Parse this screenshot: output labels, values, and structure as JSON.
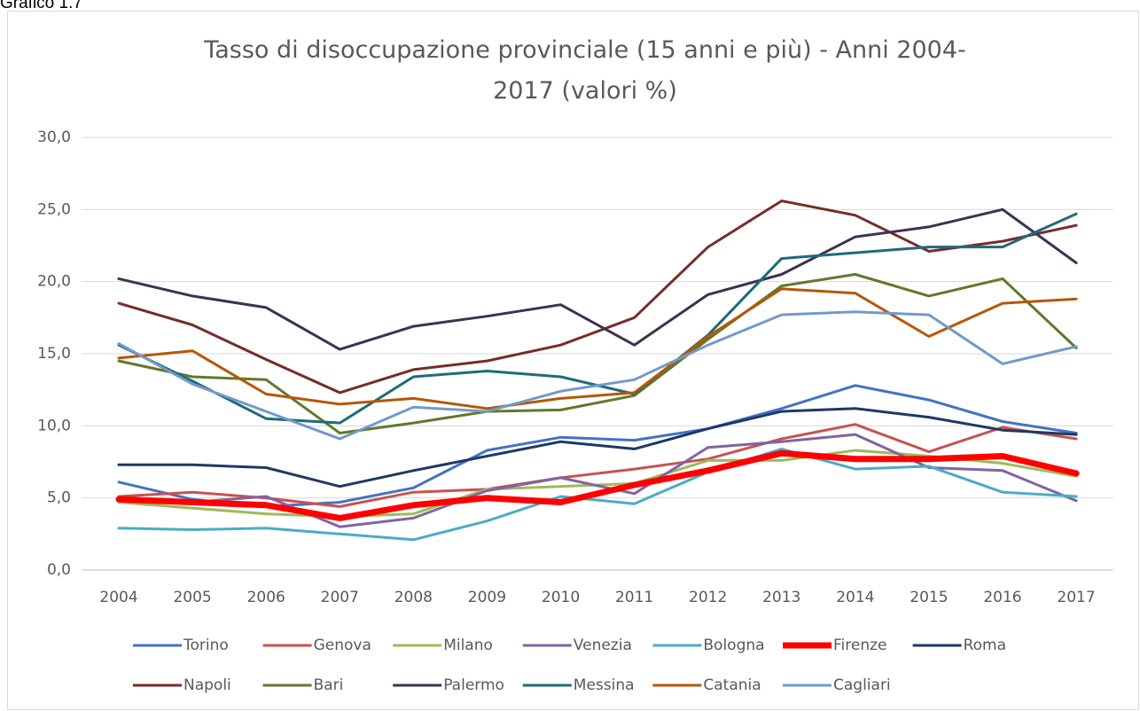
{
  "caption": "Grafico 1.7",
  "chart_data": {
    "type": "line",
    "title": "Tasso di disoccupazione provinciale (15 anni e più) - Anni 2004-2017 (valori %)",
    "categories": [
      "2004",
      "2005",
      "2006",
      "2007",
      "2008",
      "2009",
      "2010",
      "2011",
      "2012",
      "2013",
      "2014",
      "2015",
      "2016",
      "2017"
    ],
    "ylim": [
      0,
      30
    ],
    "yticks": [
      {
        "value": 0,
        "label": "0,0"
      },
      {
        "value": 5,
        "label": "5,0"
      },
      {
        "value": 10,
        "label": "10,0"
      },
      {
        "value": 15,
        "label": "15,0"
      },
      {
        "value": 20,
        "label": "20,0"
      },
      {
        "value": 25,
        "label": "25,0"
      },
      {
        "value": 30,
        "label": "30,0"
      }
    ],
    "grid": true,
    "legend": "bottom",
    "series": [
      {
        "name": "Torino",
        "color": "#4472c4",
        "line_width": 3,
        "values": [
          6.1,
          4.9,
          4.4,
          4.7,
          5.7,
          8.3,
          9.2,
          9.0,
          9.8,
          11.2,
          12.8,
          11.8,
          10.3,
          9.5
        ]
      },
      {
        "name": "Genova",
        "color": "#c9524f",
        "line_width": 3,
        "values": [
          5.1,
          5.4,
          5.0,
          4.4,
          5.4,
          5.6,
          6.4,
          7.0,
          7.7,
          9.1,
          10.1,
          8.2,
          9.9,
          9.1
        ]
      },
      {
        "name": "Milano",
        "color": "#9bbb59",
        "line_width": 3,
        "values": [
          4.7,
          4.3,
          3.9,
          3.7,
          3.9,
          5.6,
          5.8,
          6.0,
          7.6,
          7.6,
          8.3,
          7.9,
          7.4,
          6.5
        ]
      },
      {
        "name": "Venezia",
        "color": "#8064a2",
        "line_width": 3,
        "values": [
          5.0,
          4.7,
          5.1,
          3.0,
          3.6,
          5.5,
          6.4,
          5.3,
          8.5,
          8.9,
          9.4,
          7.1,
          6.9,
          4.8
        ]
      },
      {
        "name": "Bologna",
        "color": "#4bacc6",
        "line_width": 3,
        "values": [
          2.9,
          2.8,
          2.9,
          2.5,
          2.1,
          3.4,
          5.1,
          4.6,
          6.8,
          8.4,
          7.0,
          7.2,
          5.4,
          5.1
        ]
      },
      {
        "name": "Firenze",
        "color": "#ff0000",
        "line_width": 7,
        "values": [
          4.9,
          4.7,
          4.5,
          3.6,
          4.5,
          5.0,
          4.7,
          5.9,
          6.9,
          8.1,
          7.7,
          7.7,
          7.9,
          6.7
        ]
      },
      {
        "name": "Roma",
        "color": "#1f3864",
        "line_width": 3,
        "values": [
          7.3,
          7.3,
          7.1,
          5.8,
          6.9,
          7.9,
          8.9,
          8.4,
          9.8,
          11.0,
          11.2,
          10.6,
          9.7,
          9.4
        ]
      },
      {
        "name": "Napoli",
        "color": "#772c2a",
        "line_width": 3,
        "values": [
          18.5,
          17.0,
          14.6,
          12.3,
          13.9,
          14.5,
          15.6,
          17.5,
          22.4,
          25.6,
          24.6,
          22.1,
          22.8,
          23.9
        ]
      },
      {
        "name": "Bari",
        "color": "#5e7a2b",
        "line_width": 3,
        "values": [
          14.5,
          13.4,
          13.2,
          9.5,
          10.2,
          11.0,
          11.1,
          12.1,
          16.0,
          19.7,
          20.5,
          19.0,
          20.2,
          15.4
        ]
      },
      {
        "name": "Palermo",
        "color": "#3f3151",
        "line_width": 3,
        "values": [
          20.2,
          19.0,
          18.2,
          15.3,
          16.9,
          17.6,
          18.4,
          15.6,
          19.1,
          20.5,
          23.1,
          23.8,
          25.0,
          21.3
        ]
      },
      {
        "name": "Messina",
        "color": "#1e6b7a",
        "line_width": 3,
        "values": [
          15.6,
          13.1,
          10.5,
          10.2,
          13.4,
          13.8,
          13.4,
          12.2,
          16.3,
          21.6,
          22.0,
          22.4,
          22.4,
          24.7
        ]
      },
      {
        "name": "Catania",
        "color": "#b65708",
        "line_width": 3,
        "values": [
          14.7,
          15.2,
          12.2,
          11.5,
          11.9,
          11.2,
          11.9,
          12.3,
          16.2,
          19.5,
          19.2,
          16.2,
          18.5,
          18.8
        ]
      },
      {
        "name": "Cagliari",
        "color": "#729aca",
        "line_width": 3,
        "values": [
          15.7,
          12.9,
          11.0,
          9.1,
          11.3,
          11.0,
          12.4,
          13.2,
          15.6,
          17.7,
          17.9,
          17.7,
          14.3,
          15.5
        ]
      }
    ]
  }
}
